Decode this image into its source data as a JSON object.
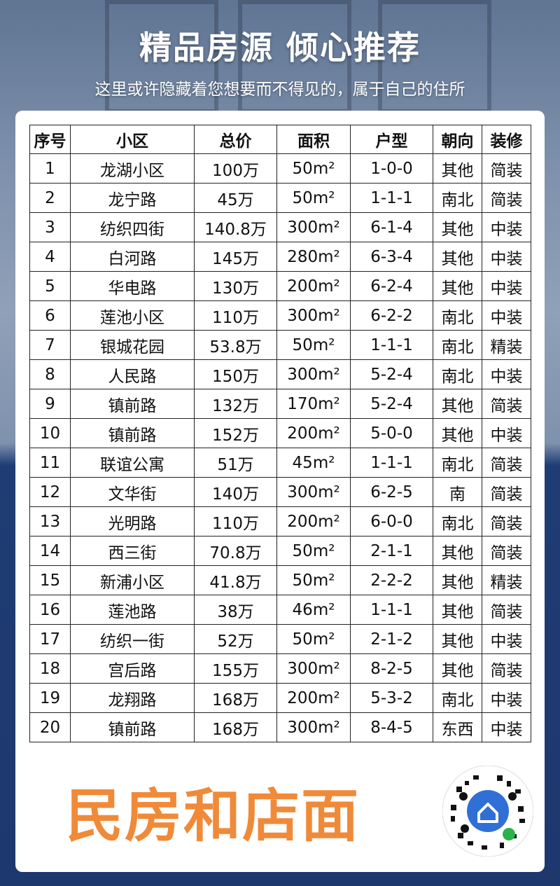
{
  "header": {
    "title": "精品房源 倾心推荐",
    "subtitle": "这里或许隐藏着您想要而不得见的，属于自己的住所"
  },
  "table": {
    "headers": [
      "序号",
      "小区",
      "总价",
      "面积",
      "户型",
      "朝向",
      "装修"
    ],
    "rows": [
      [
        "1",
        "龙湖小区",
        "100万",
        "50m²",
        "1-0-0",
        "其他",
        "简装"
      ],
      [
        "2",
        "龙宁路",
        "45万",
        "50m²",
        "1-1-1",
        "南北",
        "简装"
      ],
      [
        "3",
        "纺织四街",
        "140.8万",
        "300m²",
        "6-1-4",
        "其他",
        "中装"
      ],
      [
        "4",
        "白河路",
        "145万",
        "280m²",
        "6-3-4",
        "其他",
        "中装"
      ],
      [
        "5",
        "华电路",
        "130万",
        "200m²",
        "6-2-4",
        "其他",
        "中装"
      ],
      [
        "6",
        "莲池小区",
        "110万",
        "300m²",
        "6-2-2",
        "南北",
        "中装"
      ],
      [
        "7",
        "银城花园",
        "53.8万",
        "50m²",
        "1-1-1",
        "南北",
        "精装"
      ],
      [
        "8",
        "人民路",
        "150万",
        "300m²",
        "5-2-4",
        "南北",
        "中装"
      ],
      [
        "9",
        "镇前路",
        "132万",
        "170m²",
        "5-2-4",
        "其他",
        "简装"
      ],
      [
        "10",
        "镇前路",
        "152万",
        "200m²",
        "5-0-0",
        "其他",
        "中装"
      ],
      [
        "11",
        "联谊公寓",
        "51万",
        "45m²",
        "1-1-1",
        "南北",
        "简装"
      ],
      [
        "12",
        "文华街",
        "140万",
        "300m²",
        "6-2-5",
        "南",
        "简装"
      ],
      [
        "13",
        "光明路",
        "110万",
        "200m²",
        "6-0-0",
        "南北",
        "简装"
      ],
      [
        "14",
        "西三街",
        "70.8万",
        "50m²",
        "2-1-1",
        "其他",
        "简装"
      ],
      [
        "15",
        "新浦小区",
        "41.8万",
        "50m²",
        "2-2-2",
        "其他",
        "精装"
      ],
      [
        "16",
        "莲池路",
        "38万",
        "46m²",
        "1-1-1",
        "其他",
        "简装"
      ],
      [
        "17",
        "纺织一街",
        "52万",
        "50m²",
        "2-1-2",
        "其他",
        "中装"
      ],
      [
        "18",
        "宫后路",
        "155万",
        "300m²",
        "8-2-5",
        "其他",
        "简装"
      ],
      [
        "19",
        "龙翔路",
        "168万",
        "200m²",
        "5-3-2",
        "南北",
        "中装"
      ],
      [
        "20",
        "镇前路",
        "168万",
        "300m²",
        "8-4-5",
        "东西",
        "中装"
      ]
    ]
  },
  "footer": {
    "text": "民房和店面"
  }
}
